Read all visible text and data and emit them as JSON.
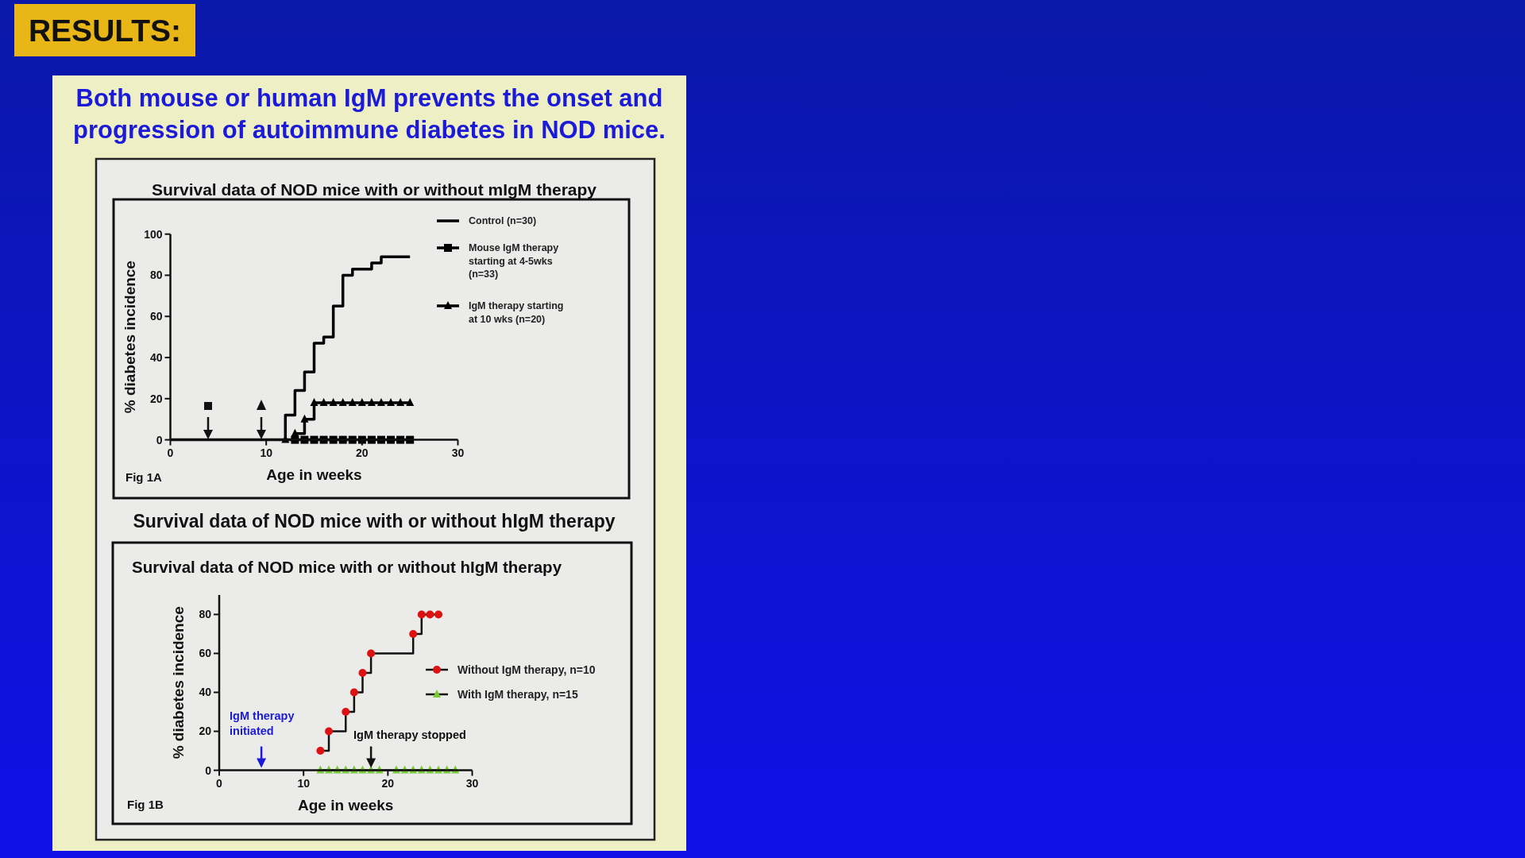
{
  "chart_data": [
    {
      "type": "step",
      "title": "Survival data of NOD mice with or without mIgM therapy",
      "xlabel": "Age in weeks",
      "ylabel": "% diabetes incidence",
      "annotations": [
        "RESULTS:",
        "Both mouse or human IgM  prevents the onset and progression of autoimmune  diabetes in  NOD mice.",
        "Fig 1A"
      ],
      "xlim": [
        0,
        30
      ],
      "xticks": [
        0,
        10,
        20,
        30
      ],
      "ylim": [
        0,
        100
      ],
      "yticks": [
        0,
        20,
        40,
        60,
        80,
        100
      ],
      "legend": "top right",
      "series": [
        {
          "name": "Control (n=30)",
          "color": "#000000",
          "marker": "none",
          "x": [
            0,
            12,
            13,
            14,
            15,
            16,
            17,
            18,
            19,
            21,
            22,
            25
          ],
          "values": [
            0,
            12,
            24,
            33,
            47,
            50,
            65,
            80,
            83,
            86,
            89,
            89
          ]
        },
        {
          "name": "Mouse IgM therapy starting at 4-5wks (n=33)",
          "color": "#000000",
          "marker": "square",
          "x": [
            13,
            14,
            15,
            16,
            17,
            18,
            19,
            20,
            21,
            22,
            23,
            24,
            25
          ],
          "values": [
            0,
            0,
            0,
            0,
            0,
            0,
            0,
            0,
            0,
            0,
            0,
            0,
            0
          ]
        },
        {
          "name": "IgM therapy starting at 10 wks (n=20)",
          "color": "#000000",
          "marker": "triangle",
          "x": [
            12,
            13,
            14,
            15,
            16,
            17,
            18,
            19,
            20,
            21,
            22,
            23,
            24,
            25
          ],
          "values": [
            0,
            3,
            10,
            18,
            18,
            18,
            18,
            18,
            18,
            18,
            18,
            18,
            18,
            18
          ]
        }
      ]
    },
    {
      "type": "step",
      "title": "Survival data of NOD mice with or without hIgM therapy",
      "xlabel": "Age in weeks",
      "ylabel": "% diabetes incidence",
      "annotations": [
        "Survival data of NOD mice with or without hIgM therapy",
        "IgM therapy initiated",
        "IgM therapy stopped",
        "Fig 1B"
      ],
      "xlim": [
        0,
        30
      ],
      "xticks": [
        0,
        10,
        20,
        30
      ],
      "ylim": [
        0,
        90
      ],
      "yticks": [
        0,
        20,
        40,
        60,
        80
      ],
      "legend": "right",
      "series": [
        {
          "name": "Without IgM therapy,  n=10",
          "color": "#dd1111",
          "marker": "circle",
          "x": [
            12,
            13,
            15,
            16,
            17,
            18,
            23,
            24,
            25,
            26
          ],
          "values": [
            10,
            20,
            30,
            40,
            50,
            60,
            70,
            80,
            80,
            80
          ]
        },
        {
          "name": "With IgM therapy, n=15",
          "color": "#77cc33",
          "marker": "triangle",
          "x": [
            12,
            13,
            14,
            15,
            16,
            17,
            18,
            19,
            21,
            22,
            23,
            24,
            25,
            26,
            27,
            28
          ],
          "values": [
            0,
            0,
            0,
            0,
            0,
            0,
            0,
            0,
            0,
            0,
            0,
            0,
            0,
            0,
            0,
            0
          ]
        }
      ]
    }
  ]
}
